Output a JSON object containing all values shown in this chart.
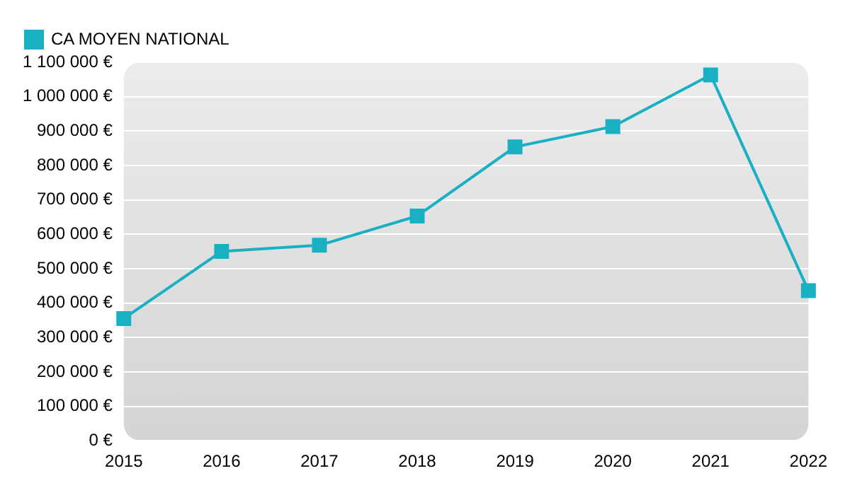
{
  "chart_data": {
    "type": "line",
    "categories": [
      "2015",
      "2016",
      "2017",
      "2018",
      "2019",
      "2020",
      "2021",
      "2022"
    ],
    "series": [
      {
        "name": "CA MOYEN NATIONAL",
        "color": "#1ab0c3",
        "values": [
          355000,
          550000,
          568000,
          653000,
          854000,
          913000,
          1063000,
          436000
        ]
      }
    ],
    "ylim": [
      0,
      1100000
    ],
    "yticks": [
      {
        "value": 0,
        "label": "0 €"
      },
      {
        "value": 100000,
        "label": "100 000 €"
      },
      {
        "value": 200000,
        "label": "200 000 €"
      },
      {
        "value": 300000,
        "label": "300 000 €"
      },
      {
        "value": 400000,
        "label": "400 000 €"
      },
      {
        "value": 500000,
        "label": "500 000 €"
      },
      {
        "value": 600000,
        "label": "600 000 €"
      },
      {
        "value": 700000,
        "label": "700 000 €"
      },
      {
        "value": 800000,
        "label": "800 000 €"
      },
      {
        "value": 900000,
        "label": "900 000 €"
      },
      {
        "value": 1000000,
        "label": "1 000 000 €"
      },
      {
        "value": 1100000,
        "label": "1 100 000 €"
      }
    ],
    "grid": "y",
    "legend": "top left",
    "marker": "square",
    "line_style": "solid"
  }
}
